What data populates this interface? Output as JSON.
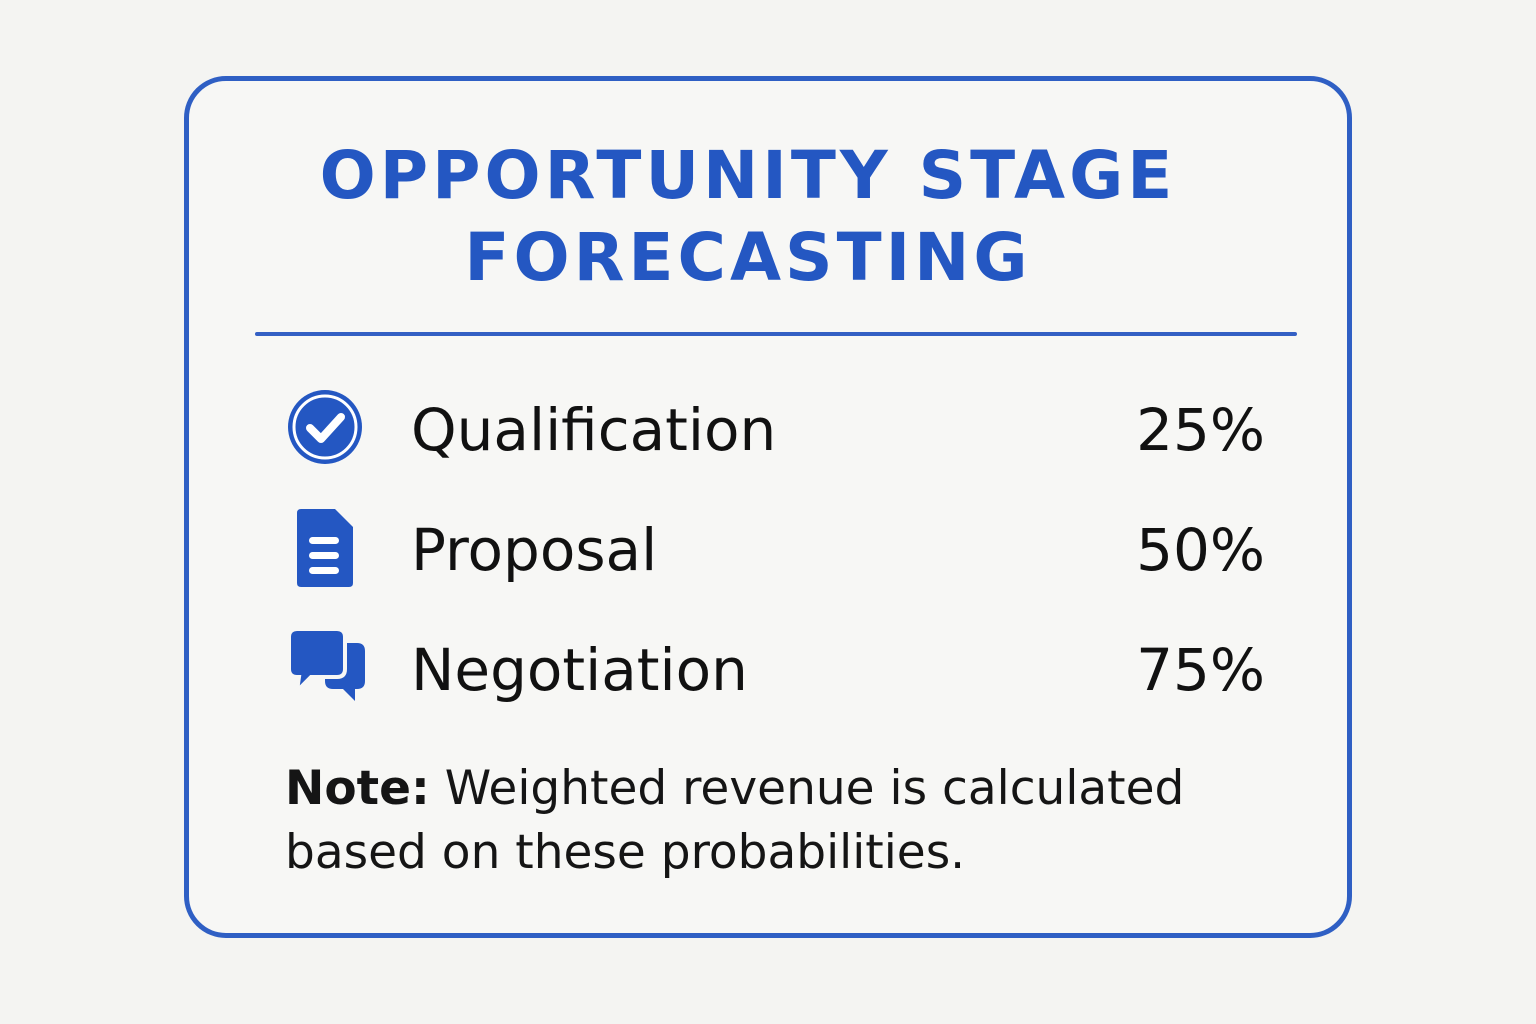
{
  "title": {
    "line1": "OPPORTUNITY STAGE",
    "line2": "FORECASTING"
  },
  "colors": {
    "accent": "#2457c2",
    "border": "#2f5fc4",
    "text": "#111111",
    "background": "#f4f4f2"
  },
  "stages": [
    {
      "icon": "check-circle-icon",
      "label": "Qualification",
      "probability": "25%"
    },
    {
      "icon": "document-icon",
      "label": "Proposal",
      "probability": "50%"
    },
    {
      "icon": "chat-bubbles-icon",
      "label": "Negotiation",
      "probability": "75%"
    }
  ],
  "note": {
    "label": "Note:",
    "text": " Weighted revenue is calculated based on these probabilities."
  }
}
